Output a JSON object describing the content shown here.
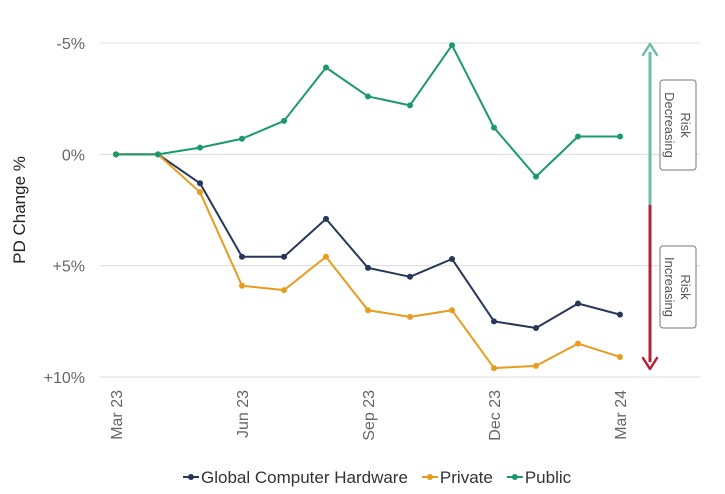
{
  "chart_data": {
    "type": "line",
    "ylabel": "PD Change %",
    "y_axis_inverted": true,
    "ylim": [
      -5,
      10
    ],
    "y_ticks": [
      {
        "value": -5,
        "label": "-5%"
      },
      {
        "value": 0,
        "label": "0%"
      },
      {
        "value": 5,
        "label": "+5%"
      },
      {
        "value": 10,
        "label": "+10%"
      }
    ],
    "x": [
      "Mar 23",
      "Apr 23",
      "May 23",
      "Jun 23",
      "Jul 23",
      "Aug 23",
      "Sep 23",
      "Oct 23",
      "Nov 23",
      "Dec 23",
      "Jan 24",
      "Feb 24",
      "Mar 24"
    ],
    "x_tick_labels": [
      "Mar 23",
      "Jun 23",
      "Sep 23",
      "Dec 23",
      "Mar 24"
    ],
    "series": [
      {
        "name": "Global Computer Hardware",
        "color": "#263859",
        "values": [
          0,
          0,
          1.3,
          4.6,
          4.6,
          2.9,
          5.1,
          5.5,
          4.7,
          7.5,
          7.8,
          6.7,
          7.2
        ]
      },
      {
        "name": "Private",
        "color": "#E79C1E",
        "values": [
          0,
          0,
          1.7,
          5.9,
          6.1,
          4.6,
          7.0,
          7.3,
          7.0,
          9.6,
          9.5,
          8.5,
          9.1
        ]
      },
      {
        "name": "Public",
        "color": "#1A9A6C",
        "values": [
          0,
          0,
          -0.3,
          -0.7,
          -1.5,
          -3.9,
          -2.6,
          -2.2,
          -4.9,
          -1.2,
          1.0,
          -0.8,
          -0.8
        ]
      }
    ],
    "grid": true,
    "legend_position": "bottom",
    "annotations": {
      "decreasing": {
        "text": "Risk Decreasing",
        "color": "#6BBFA8"
      },
      "increasing": {
        "text": "Risk Increasing",
        "color": "#B22234"
      }
    }
  }
}
